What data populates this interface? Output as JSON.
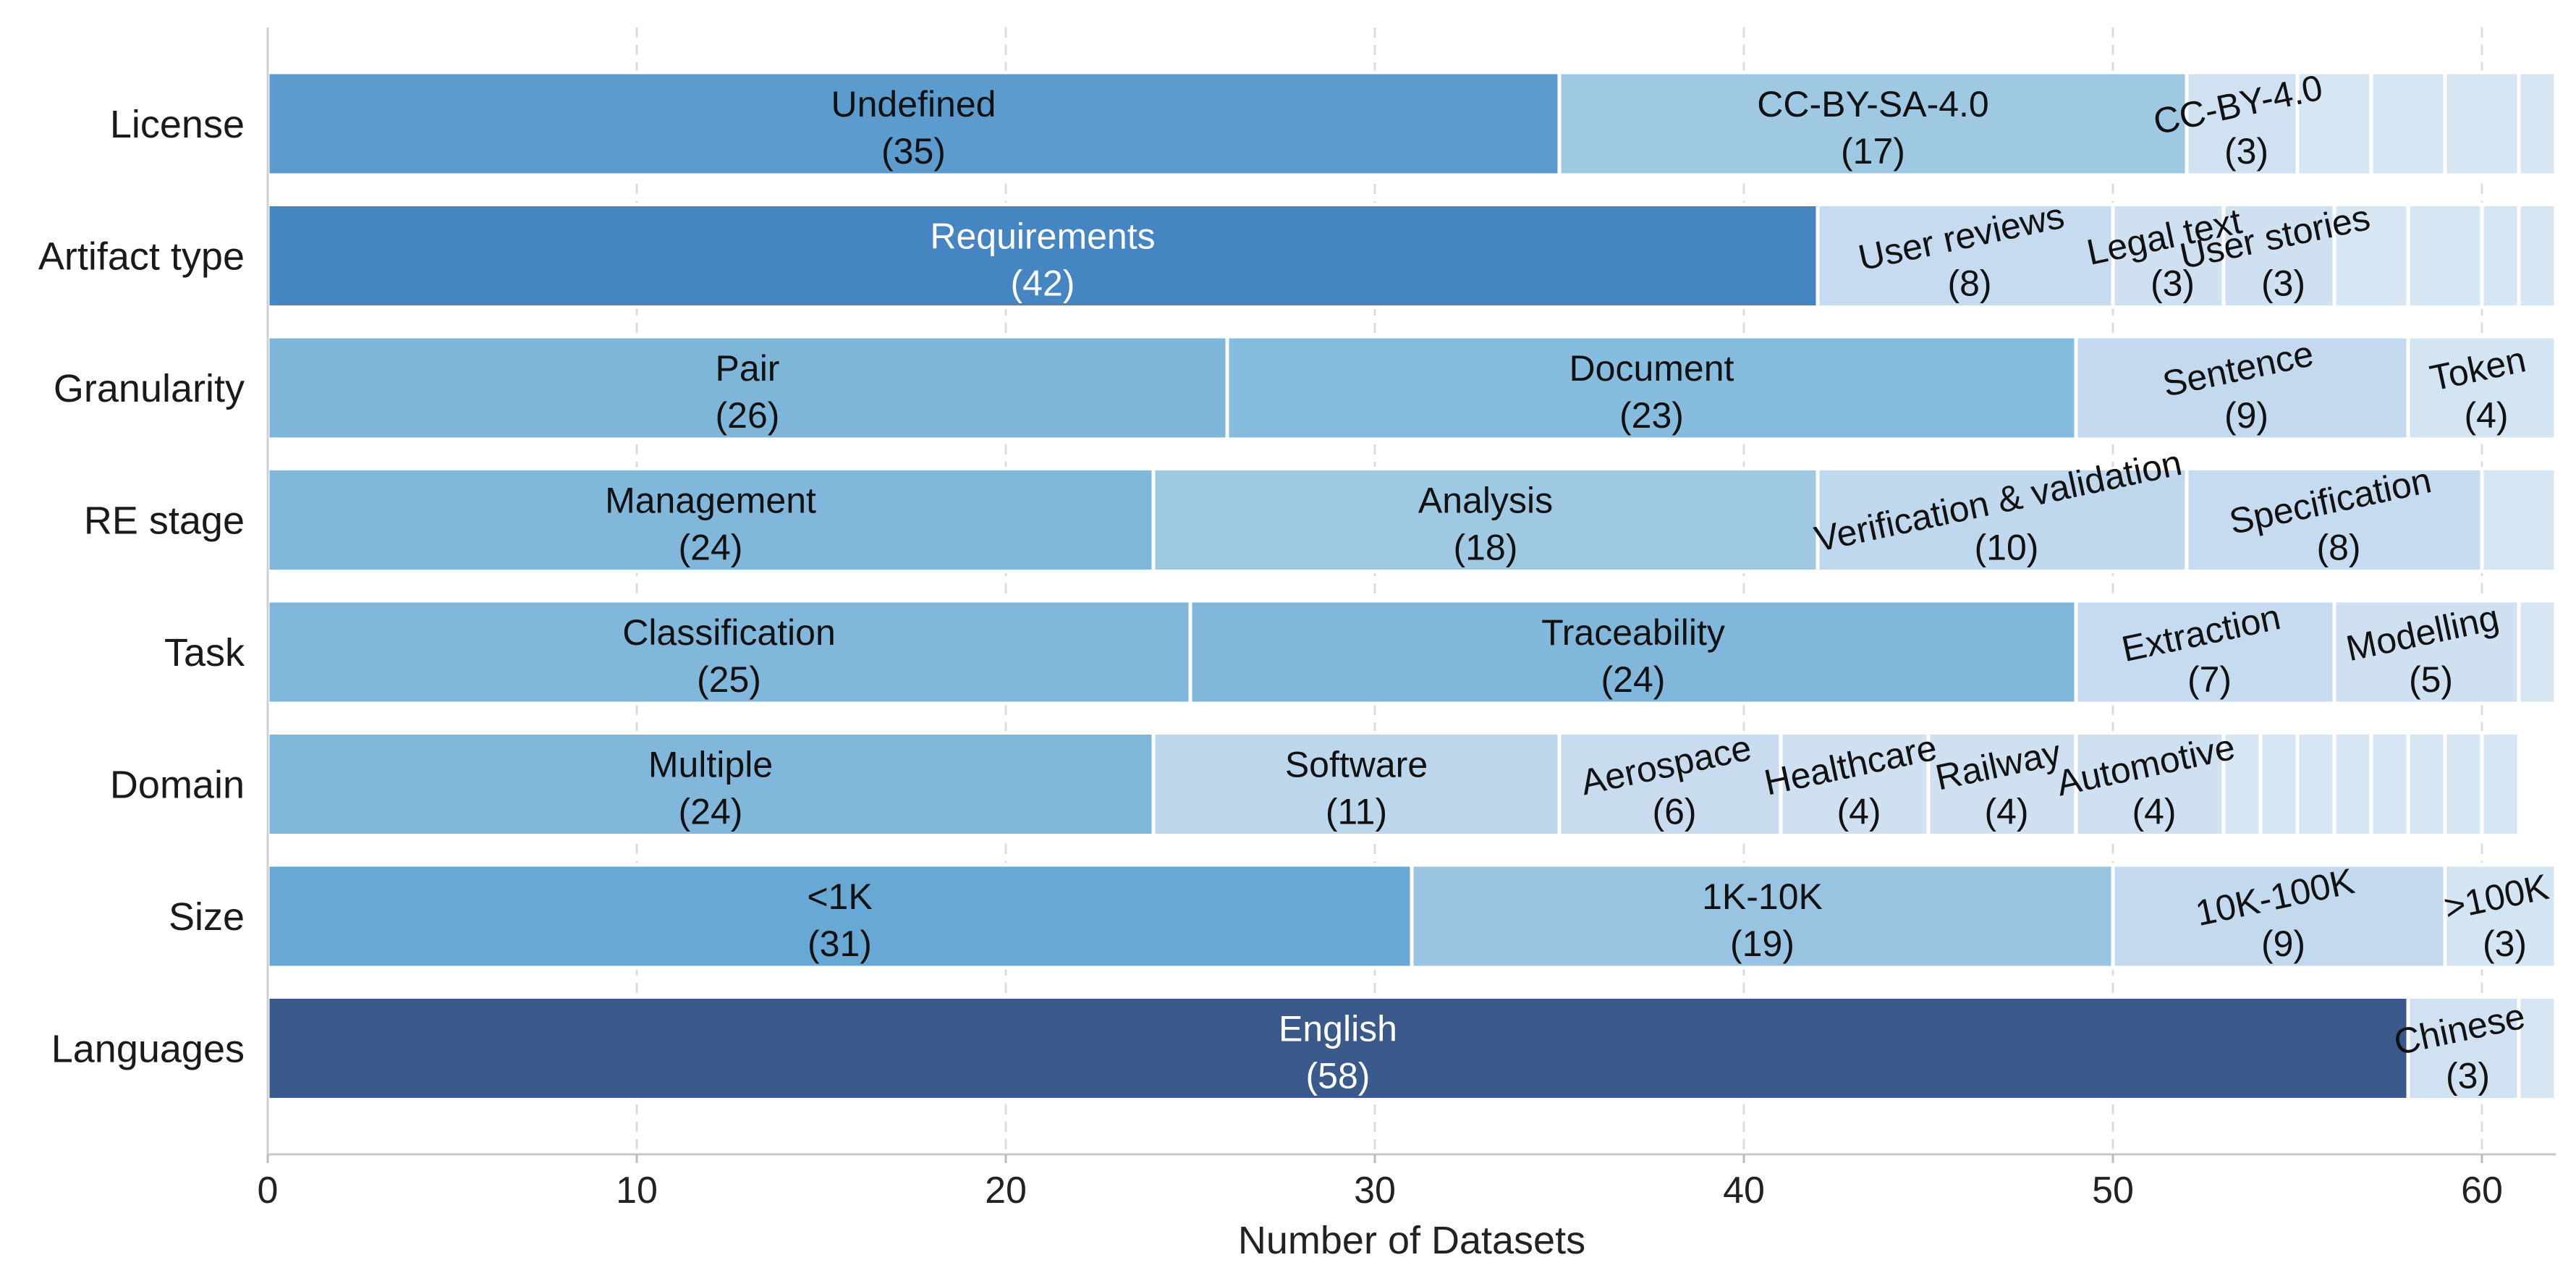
{
  "chart_data": {
    "type": "bar",
    "orientation": "horizontal",
    "stacked": true,
    "xlabel": "Number of Datasets",
    "ylabel": "",
    "xlim": [
      0,
      62
    ],
    "xticks": [
      0,
      10,
      20,
      30,
      40,
      50,
      60
    ],
    "grid": "vertical dashed",
    "categories": [
      {
        "name": "License",
        "segments": [
          {
            "label": "Undefined",
            "value": 35,
            "color": "#5b9bcd",
            "text_color": "#111111",
            "rotated": false
          },
          {
            "label": "CC-BY-SA-4.0",
            "value": 17,
            "color": "#9fc8e3",
            "text_color": "#111111",
            "rotated": false
          },
          {
            "label": "CC-BY-4.0",
            "value": 3,
            "color": "#d0e2f2",
            "text_color": "#111111",
            "rotated": true
          },
          {
            "label": "",
            "value": 2,
            "color": "#d7e6f3"
          },
          {
            "label": "",
            "value": 2,
            "color": "#d7e6f3"
          },
          {
            "label": "",
            "value": 2,
            "color": "#d7e6f3"
          },
          {
            "label": "",
            "value": 1,
            "color": "#d7e6f3"
          }
        ]
      },
      {
        "name": "Artifact type",
        "segments": [
          {
            "label": "Requirements",
            "value": 42,
            "color": "#4585c1",
            "text_color": "#ffffff",
            "rotated": false
          },
          {
            "label": "User reviews",
            "value": 8,
            "color": "#c6dbef",
            "text_color": "#111111",
            "rotated": true
          },
          {
            "label": "Legal text",
            "value": 3,
            "color": "#cfe1f1",
            "text_color": "#111111",
            "rotated": true
          },
          {
            "label": "User stories",
            "value": 3,
            "color": "#cfe1f1",
            "text_color": "#111111",
            "rotated": true
          },
          {
            "label": "",
            "value": 2,
            "color": "#d7e6f3"
          },
          {
            "label": "",
            "value": 2,
            "color": "#d7e6f3"
          },
          {
            "label": "",
            "value": 1,
            "color": "#d7e6f3"
          },
          {
            "label": "",
            "value": 1,
            "color": "#d7e6f3"
          }
        ]
      },
      {
        "name": "Granularity",
        "segments": [
          {
            "label": "Pair",
            "value": 26,
            "color": "#7eb6da",
            "text_color": "#111111",
            "rotated": false
          },
          {
            "label": "Document",
            "value": 23,
            "color": "#86bcdd",
            "text_color": "#111111",
            "rotated": false
          },
          {
            "label": "Sentence",
            "value": 9,
            "color": "#c2d9ee",
            "text_color": "#111111",
            "rotated": true
          },
          {
            "label": "Token",
            "value": 4,
            "color": "#d3e4f2",
            "text_color": "#111111",
            "rotated": true
          }
        ]
      },
      {
        "name": "RE stage",
        "segments": [
          {
            "label": "Management",
            "value": 24,
            "color": "#80b7db",
            "text_color": "#111111",
            "rotated": false
          },
          {
            "label": "Analysis",
            "value": 18,
            "color": "#9fc8e3",
            "text_color": "#111111",
            "rotated": false
          },
          {
            "label": "Verification & validation",
            "value": 10,
            "color": "#c0d8ed",
            "text_color": "#111111",
            "rotated": true
          },
          {
            "label": "Specification",
            "value": 8,
            "color": "#c6dbef",
            "text_color": "#111111",
            "rotated": true
          },
          {
            "label": "",
            "value": 2,
            "color": "#d7e6f3"
          }
        ]
      },
      {
        "name": "Task",
        "segments": [
          {
            "label": "Classification",
            "value": 25,
            "color": "#80b7db",
            "text_color": "#111111",
            "rotated": false
          },
          {
            "label": "Traceability",
            "value": 24,
            "color": "#80b7db",
            "text_color": "#111111",
            "rotated": false
          },
          {
            "label": "Extraction",
            "value": 7,
            "color": "#c6dbef",
            "text_color": "#111111",
            "rotated": true
          },
          {
            "label": "Modelling",
            "value": 5,
            "color": "#cfe1f1",
            "text_color": "#111111",
            "rotated": true
          },
          {
            "label": "",
            "value": 1,
            "color": "#d7e6f3"
          }
        ]
      },
      {
        "name": "Domain",
        "segments": [
          {
            "label": "Multiple",
            "value": 24,
            "color": "#80b7db",
            "text_color": "#111111",
            "rotated": false
          },
          {
            "label": "Software",
            "value": 11,
            "color": "#bcd6ec",
            "text_color": "#111111",
            "rotated": false
          },
          {
            "label": "Aerospace",
            "value": 6,
            "color": "#c9dcef",
            "text_color": "#111111",
            "rotated": true
          },
          {
            "label": "Healthcare",
            "value": 4,
            "color": "#cfe1f1",
            "text_color": "#111111",
            "rotated": true
          },
          {
            "label": "Railway",
            "value": 4,
            "color": "#cfe1f1",
            "text_color": "#111111",
            "rotated": true
          },
          {
            "label": "Automotive",
            "value": 4,
            "color": "#cfe1f1",
            "text_color": "#111111",
            "rotated": true
          },
          {
            "label": "",
            "value": 1,
            "color": "#d7e6f3"
          },
          {
            "label": "",
            "value": 1,
            "color": "#d7e6f3"
          },
          {
            "label": "",
            "value": 1,
            "color": "#d7e6f3"
          },
          {
            "label": "",
            "value": 1,
            "color": "#d7e6f3"
          },
          {
            "label": "",
            "value": 1,
            "color": "#d7e6f3"
          },
          {
            "label": "",
            "value": 1,
            "color": "#d7e6f3"
          },
          {
            "label": "",
            "value": 1,
            "color": "#d7e6f3"
          },
          {
            "label": "",
            "value": 1,
            "color": "#d7e6f3"
          }
        ]
      },
      {
        "name": "Size",
        "segments": [
          {
            "label": "<1K",
            "value": 31,
            "color": "#68a8d5",
            "text_color": "#111111",
            "rotated": false
          },
          {
            "label": "1K-10K",
            "value": 19,
            "color": "#98c4e2",
            "text_color": "#111111",
            "rotated": false
          },
          {
            "label": "10K-100K",
            "value": 9,
            "color": "#c2d9ee",
            "text_color": "#111111",
            "rotated": true
          },
          {
            "label": ">100K",
            "value": 3,
            "color": "#d3e4f2",
            "text_color": "#111111",
            "rotated": true
          }
        ]
      },
      {
        "name": "Languages",
        "segments": [
          {
            "label": "English",
            "value": 58,
            "color": "#3a5a8c",
            "text_color": "#ffffff",
            "rotated": false
          },
          {
            "label": "Chinese",
            "value": 3,
            "color": "#d0e2f2",
            "text_color": "#111111",
            "rotated": true
          },
          {
            "label": "",
            "value": 1,
            "color": "#d7e6f3"
          }
        ]
      }
    ]
  }
}
